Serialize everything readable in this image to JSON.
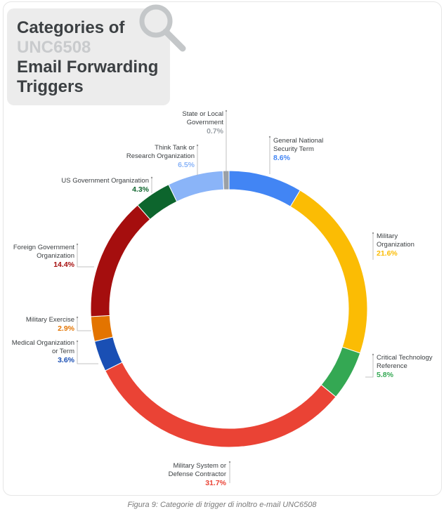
{
  "title": {
    "line1": "Categories of",
    "line2": "UNC6508",
    "line3": "Email Forwarding",
    "line4": "Triggers"
  },
  "caption": "Figura 9: Categorie di trigger di inoltro e-mail UNC6508",
  "icon": "search-icon",
  "chart_data": {
    "type": "pie",
    "donut": true,
    "title": "Categories of UNC6508 Email Forwarding Triggers",
    "unit": "%",
    "slices": [
      {
        "id": "general-national-security-term",
        "lines": [
          "General National",
          "Security Term"
        ],
        "value": 8.6,
        "label": "8.6%",
        "color": "#4285f4"
      },
      {
        "id": "military-organization",
        "lines": [
          "Military",
          "Organization"
        ],
        "value": 21.6,
        "label": "21.6%",
        "color": "#fbbc04"
      },
      {
        "id": "critical-technology-reference",
        "lines": [
          "Critical Technology",
          "Reference"
        ],
        "value": 5.8,
        "label": "5.8%",
        "color": "#34a853"
      },
      {
        "id": "military-system-or-defense-contractor",
        "lines": [
          "Military System or",
          "Defense Contractor"
        ],
        "value": 31.7,
        "label": "31.7%",
        "color": "#ea4335"
      },
      {
        "id": "medical-organization-or-term",
        "lines": [
          "Medical Organization",
          "or Term"
        ],
        "value": 3.6,
        "label": "3.6%",
        "color": "#1a4fb4"
      },
      {
        "id": "military-exercise",
        "lines": [
          "Military Exercise"
        ],
        "value": 2.9,
        "label": "2.9%",
        "color": "#e37400"
      },
      {
        "id": "foreign-government-organization",
        "lines": [
          "Foreign Government",
          "Organization"
        ],
        "value": 14.4,
        "label": "14.4%",
        "color": "#a50e0e"
      },
      {
        "id": "us-government-organization",
        "lines": [
          "US Government Organization"
        ],
        "value": 4.3,
        "label": "4.3%",
        "color": "#0d652d"
      },
      {
        "id": "think-tank-or-research-organization",
        "lines": [
          "Think Tank or",
          "Research Organization"
        ],
        "value": 6.5,
        "label": "6.5%",
        "color": "#8ab4f8"
      },
      {
        "id": "state-or-local-government",
        "lines": [
          "State or Local",
          "Government"
        ],
        "value": 0.7,
        "label": "0.7%",
        "color": "#9aa0a6"
      }
    ]
  }
}
